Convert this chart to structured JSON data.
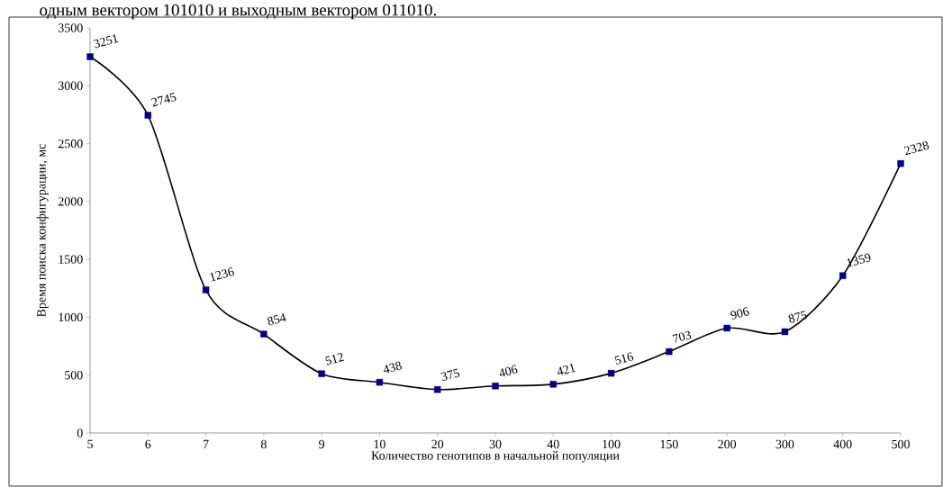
{
  "chart_data": {
    "type": "line",
    "xlabel": "Количество генотипов в начальной популяции",
    "ylabel": "Время поиска конфигурации, мс",
    "annotations": [
      "одным вектором 101010 и выходным вектором 011010."
    ],
    "categories": [
      "5",
      "6",
      "7",
      "8",
      "9",
      "10",
      "20",
      "30",
      "40",
      "100",
      "150",
      "200",
      "300",
      "400",
      "500"
    ],
    "values": [
      3251,
      2745,
      1236,
      854,
      512,
      438,
      375,
      406,
      421,
      516,
      703,
      906,
      875,
      1359,
      2328
    ],
    "color": "#000080",
    "marker": "square",
    "line_style": "solid",
    "data_labels": true,
    "ylim": [
      0,
      3500
    ],
    "yticks": [
      0,
      500,
      1000,
      1500,
      2000,
      2500,
      3000,
      3500
    ],
    "grid": false
  }
}
